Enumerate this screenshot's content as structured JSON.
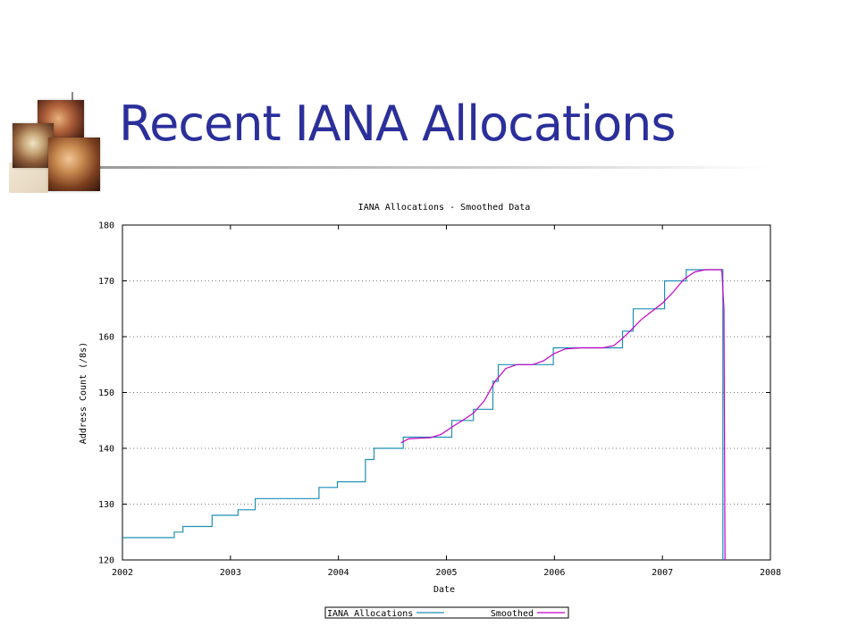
{
  "slide": {
    "title": "Recent IANA Allocations"
  },
  "chart_data": {
    "type": "line",
    "title": "IANA Allocations - Smoothed Data",
    "xlabel": "Date",
    "ylabel": "Address Count (/8s)",
    "xlim": [
      2002,
      2008
    ],
    "ylim": [
      120,
      180
    ],
    "x_ticks": [
      "2002",
      "2003",
      "2004",
      "2005",
      "2006",
      "2007",
      "2008"
    ],
    "y_ticks": [
      "120",
      "130",
      "140",
      "150",
      "160",
      "170",
      "180"
    ],
    "grid": true,
    "legend_placement": "bottom-center",
    "series": [
      {
        "name": "IANA Allocations",
        "color": "#1f8fb5",
        "style": "step",
        "points": [
          [
            2002.0,
            124
          ],
          [
            2002.48,
            125
          ],
          [
            2002.56,
            126
          ],
          [
            2002.83,
            128
          ],
          [
            2003.07,
            129
          ],
          [
            2003.23,
            131
          ],
          [
            2003.82,
            133
          ],
          [
            2003.99,
            134
          ],
          [
            2004.25,
            138
          ],
          [
            2004.33,
            140
          ],
          [
            2004.6,
            142
          ],
          [
            2005.05,
            145
          ],
          [
            2005.25,
            147
          ],
          [
            2005.43,
            152
          ],
          [
            2005.48,
            155
          ],
          [
            2005.99,
            158
          ],
          [
            2006.63,
            161
          ],
          [
            2006.73,
            165
          ],
          [
            2007.02,
            170
          ],
          [
            2007.22,
            172
          ],
          [
            2007.56,
            172
          ],
          [
            2007.56,
            120
          ]
        ]
      },
      {
        "name": "Smoothed",
        "color": "#c800c8",
        "style": "line",
        "points": [
          [
            2004.58,
            141
          ],
          [
            2004.65,
            141.7
          ],
          [
            2004.75,
            141.8
          ],
          [
            2004.85,
            141.9
          ],
          [
            2004.95,
            142.5
          ],
          [
            2005.05,
            143.8
          ],
          [
            2005.15,
            145
          ],
          [
            2005.25,
            146.3
          ],
          [
            2005.35,
            148.5
          ],
          [
            2005.45,
            152
          ],
          [
            2005.55,
            154.3
          ],
          [
            2005.65,
            155
          ],
          [
            2005.8,
            155
          ],
          [
            2005.9,
            155.7
          ],
          [
            2006.0,
            157
          ],
          [
            2006.1,
            157.8
          ],
          [
            2006.25,
            158
          ],
          [
            2006.45,
            158
          ],
          [
            2006.55,
            158.4
          ],
          [
            2006.62,
            159.5
          ],
          [
            2006.7,
            161
          ],
          [
            2006.8,
            163
          ],
          [
            2006.9,
            164.5
          ],
          [
            2007.0,
            166
          ],
          [
            2007.1,
            168
          ],
          [
            2007.2,
            170.3
          ],
          [
            2007.3,
            171.6
          ],
          [
            2007.4,
            172
          ],
          [
            2007.55,
            172
          ],
          [
            2007.57,
            165
          ],
          [
            2007.58,
            120
          ]
        ]
      }
    ]
  }
}
